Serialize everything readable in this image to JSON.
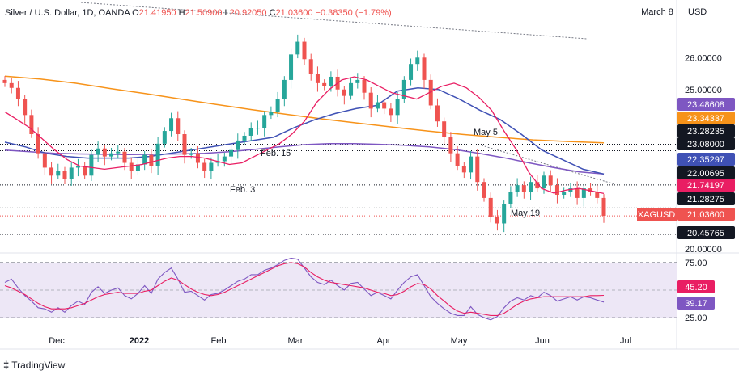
{
  "header": {
    "symbol": "Silver / U.S. Dollar, 1D, OANDA",
    "o_label": "O",
    "o_value": "21.41950",
    "h_label": "H",
    "h_value": "21.50900",
    "l_label": "L",
    "l_value": "20.92050",
    "c_label": "C",
    "c_value": "21.03600",
    "change": "−0.38350 (−1.79%)"
  },
  "corner_date": "March 8",
  "currency": "USD",
  "brand": "TradingView",
  "chart_data": {
    "type": "line",
    "x_labels": [
      "Dec",
      "2022",
      "Feb",
      "Mar",
      "Apr",
      "May",
      "Jun",
      "Jul"
    ],
    "price_axis": {
      "ticks": [
        "26.00000",
        "25.00000",
        "20.00000"
      ],
      "tick_values": [
        26.0,
        25.0,
        20.0
      ],
      "ylim": [
        19.9,
        27.3
      ]
    },
    "rsi_axis": {
      "ticks": [
        "75.00",
        "25.00"
      ],
      "tick_values": [
        75,
        25
      ],
      "ylim": [
        17,
        83
      ]
    },
    "price_series": [
      {
        "name": "close",
        "values": [
          25.2,
          25.05,
          24.7,
          24.2,
          23.6,
          23.0,
          22.55,
          22.3,
          22.45,
          22.2,
          22.55,
          22.6,
          22.3,
          22.95,
          23.15,
          22.9,
          23.0,
          23.05,
          22.7,
          22.45,
          22.65,
          22.95,
          22.6,
          23.3,
          23.7,
          24.1,
          23.6,
          22.95,
          23.0,
          22.7,
          22.45,
          22.7,
          22.75,
          22.9,
          23.1,
          23.4,
          23.55,
          23.8,
          23.8,
          24.2,
          24.3,
          24.7,
          25.3,
          26.1,
          26.5,
          25.95,
          25.5,
          25.2,
          25.1,
          25.4,
          25.0,
          24.8,
          25.2,
          25.3,
          24.9,
          24.4,
          24.6,
          24.4,
          24.2,
          24.7,
          25.3,
          25.8,
          26.0,
          25.3,
          24.5,
          24.0,
          23.5,
          23.0,
          22.6,
          22.4,
          22.9,
          22.1,
          21.6,
          21.0,
          20.8,
          21.4,
          21.8,
          22.0,
          21.8,
          22.1,
          21.9,
          22.3,
          22.0,
          21.7,
          21.8,
          21.9,
          21.6,
          21.9,
          21.8,
          21.6,
          21.04
        ]
      },
      {
        "name": "EMA 200",
        "values": [
          25.42,
          25.33,
          25.2,
          25.03,
          24.87,
          24.7,
          24.53,
          24.37,
          24.22,
          24.08,
          23.95,
          23.82,
          23.7,
          23.59,
          23.5,
          23.42,
          23.37,
          23.33
        ]
      },
      {
        "name": "EMA 100",
        "values": [
          23.1,
          23.05,
          23.0,
          22.98,
          22.97,
          22.96,
          22.97,
          22.98,
          23.0,
          23.05,
          23.12,
          23.2,
          23.27,
          23.3,
          23.3,
          23.28,
          23.25,
          23.2,
          23.12,
          23.0,
          22.86,
          22.7,
          22.55,
          22.42,
          22.35
        ]
      },
      {
        "name": "EMA 50",
        "values": [
          23.35,
          23.2,
          23.0,
          22.9,
          22.85,
          22.85,
          22.85,
          22.9,
          23.0,
          23.1,
          23.2,
          23.3,
          23.4,
          23.5,
          23.8,
          24.05,
          24.25,
          24.4,
          24.5,
          24.95,
          25.05,
          25.0,
          24.7,
          24.35,
          24.05,
          23.6,
          23.1,
          22.8,
          22.5,
          22.35
        ]
      },
      {
        "name": "SMA 20",
        "values": [
          24.3,
          24.05,
          23.8,
          23.45,
          23.1,
          22.8,
          22.6,
          22.55,
          22.5,
          22.55,
          22.6,
          22.65,
          22.75,
          22.85,
          22.9,
          22.9,
          22.85,
          22.75,
          22.65,
          22.7,
          22.9,
          23.1,
          23.3,
          23.6,
          24.0,
          24.6,
          25.0,
          25.3,
          25.4,
          25.3,
          25.1,
          24.9,
          24.8,
          24.7,
          24.9,
          25.1,
          25.2,
          25.05,
          24.75,
          24.35,
          23.7,
          23.1,
          22.4,
          21.9,
          21.75,
          21.85,
          21.9,
          21.82,
          21.74
        ]
      }
    ],
    "rsi_series": [
      {
        "name": "RSI",
        "last": 39.17,
        "values": [
          57,
          60,
          52,
          45,
          40,
          34,
          33,
          30,
          34,
          30,
          36,
          40,
          37,
          48,
          53,
          47,
          50,
          52,
          45,
          42,
          47,
          54,
          47,
          60,
          66,
          70,
          60,
          48,
          49,
          45,
          41,
          46,
          47,
          50,
          54,
          58,
          60,
          64,
          64,
          68,
          70,
          73,
          77,
          79,
          78,
          70,
          62,
          57,
          55,
          59,
          54,
          50,
          56,
          57,
          51,
          45,
          48,
          45,
          42,
          50,
          57,
          62,
          64,
          54,
          44,
          38,
          33,
          29,
          27,
          27,
          35,
          28,
          25,
          23,
          26,
          34,
          40,
          43,
          41,
          45,
          43,
          48,
          45,
          40,
          42,
          44,
          41,
          44,
          43,
          41,
          39.17
        ]
      },
      {
        "name": "RSI MA",
        "last": 45.2,
        "values": [
          54,
          52,
          49,
          46,
          42,
          38,
          35,
          33,
          33,
          33,
          34,
          36,
          38,
          41,
          44,
          46,
          47,
          48,
          47,
          47,
          47,
          49,
          50,
          54,
          58,
          61,
          59,
          55,
          51,
          48,
          46,
          45,
          46,
          48,
          51,
          54,
          57,
          60,
          63,
          66,
          69,
          72,
          74,
          75,
          74,
          71,
          66,
          62,
          59,
          57,
          56,
          55,
          54,
          53,
          52,
          50,
          48,
          47,
          45,
          46,
          49,
          53,
          56,
          55,
          51,
          45,
          40,
          35,
          31,
          29,
          30,
          29,
          28,
          27,
          27,
          29,
          33,
          37,
          40,
          42,
          43,
          44,
          44,
          44,
          44,
          44,
          44,
          44,
          45,
          45,
          45.2
        ]
      }
    ],
    "price_levels": [
      {
        "value": "23.48608",
        "color": "#7e57c2"
      },
      {
        "value": "23.34337",
        "color": "#f7931a"
      },
      {
        "value": "23.28235",
        "color": "#131722"
      },
      {
        "value": "23.08000",
        "color": "#131722"
      },
      {
        "value": "22.35297",
        "color": "#3f51b5"
      },
      {
        "value": "22.00695",
        "color": "#131722"
      },
      {
        "value": "21.74197",
        "color": "#e91e63"
      },
      {
        "value": "21.28275",
        "color": "#131722"
      },
      {
        "value": "21.03600",
        "color": "#ef5350",
        "tag": "XAGUSD"
      },
      {
        "value": "20.45765",
        "color": "#131722"
      }
    ],
    "rsi_levels": [
      {
        "value": "45.20",
        "color": "#e91e63"
      },
      {
        "value": "39.17",
        "color": "#7e57c2"
      }
    ],
    "annotations": [
      "May 5",
      "Feb. 15",
      "Feb. 3",
      "May 19"
    ],
    "colors": {
      "up": "#26a69a",
      "down": "#ef5350",
      "ema200": "#f7931a",
      "ema100": "#7e57c2",
      "ema50": "#3f51b5",
      "sma20": "#e91e63",
      "rsi_band": "#ede7f6"
    },
    "grid": false,
    "legend": "none"
  }
}
